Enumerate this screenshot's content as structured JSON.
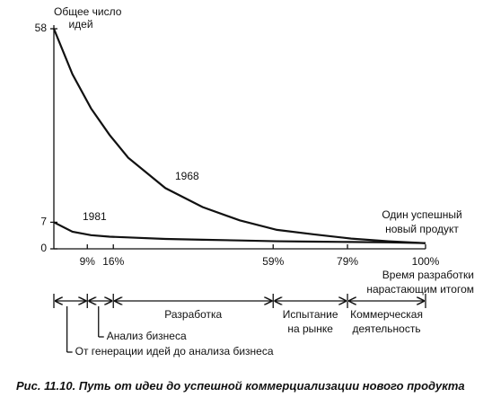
{
  "chart_data": {
    "type": "line",
    "caption": "Рис. 11.10. Путь от идеи до успешной коммерциализации нового продукта",
    "ylabel_lines": [
      "Общее число",
      "идей"
    ],
    "xlabel_lines": [
      "Время разработки",
      "нарастающим итогом"
    ],
    "end_label_lines": [
      "Один успешный",
      "новый продукт"
    ],
    "x": [
      0,
      5,
      10,
      15,
      20,
      30,
      40,
      50,
      60,
      70,
      80,
      90,
      100
    ],
    "series": [
      {
        "name": "1968",
        "color": "#111111",
        "values": [
          58,
          46,
          37,
          30,
          24,
          16,
          11,
          7.5,
          5,
          3.8,
          2.7,
          2,
          1.5
        ]
      },
      {
        "name": "1981",
        "color": "#111111",
        "values": [
          7,
          4.5,
          3.6,
          3.2,
          3,
          2.6,
          2.4,
          2.2,
          2,
          1.9,
          1.8,
          1.7,
          1.5
        ]
      }
    ],
    "xlim": [
      0,
      100
    ],
    "ylim": [
      0,
      58
    ],
    "yticks": [
      0,
      7,
      58
    ],
    "xticks": [
      {
        "value": 9,
        "label": "9%"
      },
      {
        "value": 16,
        "label": "16%"
      },
      {
        "value": 59,
        "label": "59%"
      },
      {
        "value": 79,
        "label": "79%"
      },
      {
        "value": 100,
        "label": "100%"
      }
    ],
    "stages": [
      [
        "От генерации идей до анализа бизнеса"
      ],
      [
        "Анализ бизнеса"
      ],
      [
        "Разработка"
      ],
      [
        "Испытание",
        "на рынке"
      ],
      [
        "Коммерческая",
        "деятельность"
      ]
    ]
  }
}
